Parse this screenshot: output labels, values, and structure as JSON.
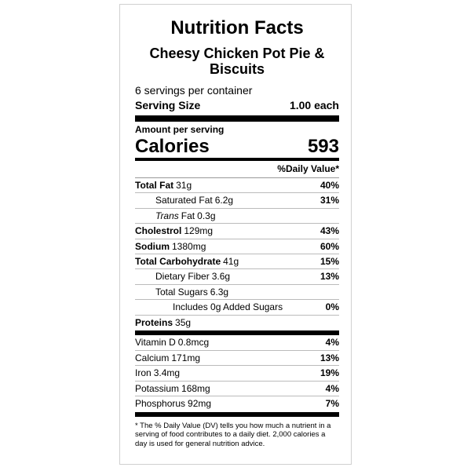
{
  "header": {
    "title": "Nutrition Facts",
    "product": "Cheesy Chicken Pot Pie & Biscuits",
    "servings": "6 servings per container",
    "serving_size_label": "Serving Size",
    "serving_size": "1.00 each"
  },
  "calories": {
    "amount_label": "Amount per serving",
    "label": "Calories",
    "value": 593
  },
  "daily_value_header": "%Daily Value*",
  "nutrients": [
    {
      "name": "Total Fat",
      "amount": "31g",
      "dv": "40%"
    },
    {
      "name": "Saturated Fat",
      "amount": "6.2g",
      "dv": "31%"
    },
    {
      "name_italic": "Trans",
      "name": "Fat",
      "amount": "0.3g"
    },
    {
      "name": "Cholestrol",
      "amount": "129mg",
      "dv": "43%"
    },
    {
      "name": "Sodium",
      "amount": "1380mg",
      "dv": "60%"
    },
    {
      "name": "Total Carbohydrate",
      "amount": "41g",
      "dv": "15%"
    },
    {
      "name": "Dietary Fiber",
      "amount": "3.6g",
      "dv": "13%"
    },
    {
      "name": "Total Sugars",
      "amount": "6.3g"
    },
    {
      "name": "Includes 0g Added Sugars",
      "dv": "0%"
    },
    {
      "name": "Proteins",
      "amount": "35g"
    }
  ],
  "micronutrients": [
    {
      "name": "Vitamin D",
      "amount": "0.8mcg",
      "dv": "4%"
    },
    {
      "name": "Calcium",
      "amount": "171mg",
      "dv": "13%"
    },
    {
      "name": "Iron",
      "amount": "3.4mg",
      "dv": "19%"
    },
    {
      "name": "Potassium",
      "amount": "168mg",
      "dv": "4%"
    },
    {
      "name": "Phosphorus",
      "amount": "92mg",
      "dv": "7%"
    }
  ],
  "footnote": "* The % Daily Value (DV) tells you how much a nutrient in a serving of food contributes to a daily diet. 2,000 calories a day is used for general nutrition advice."
}
